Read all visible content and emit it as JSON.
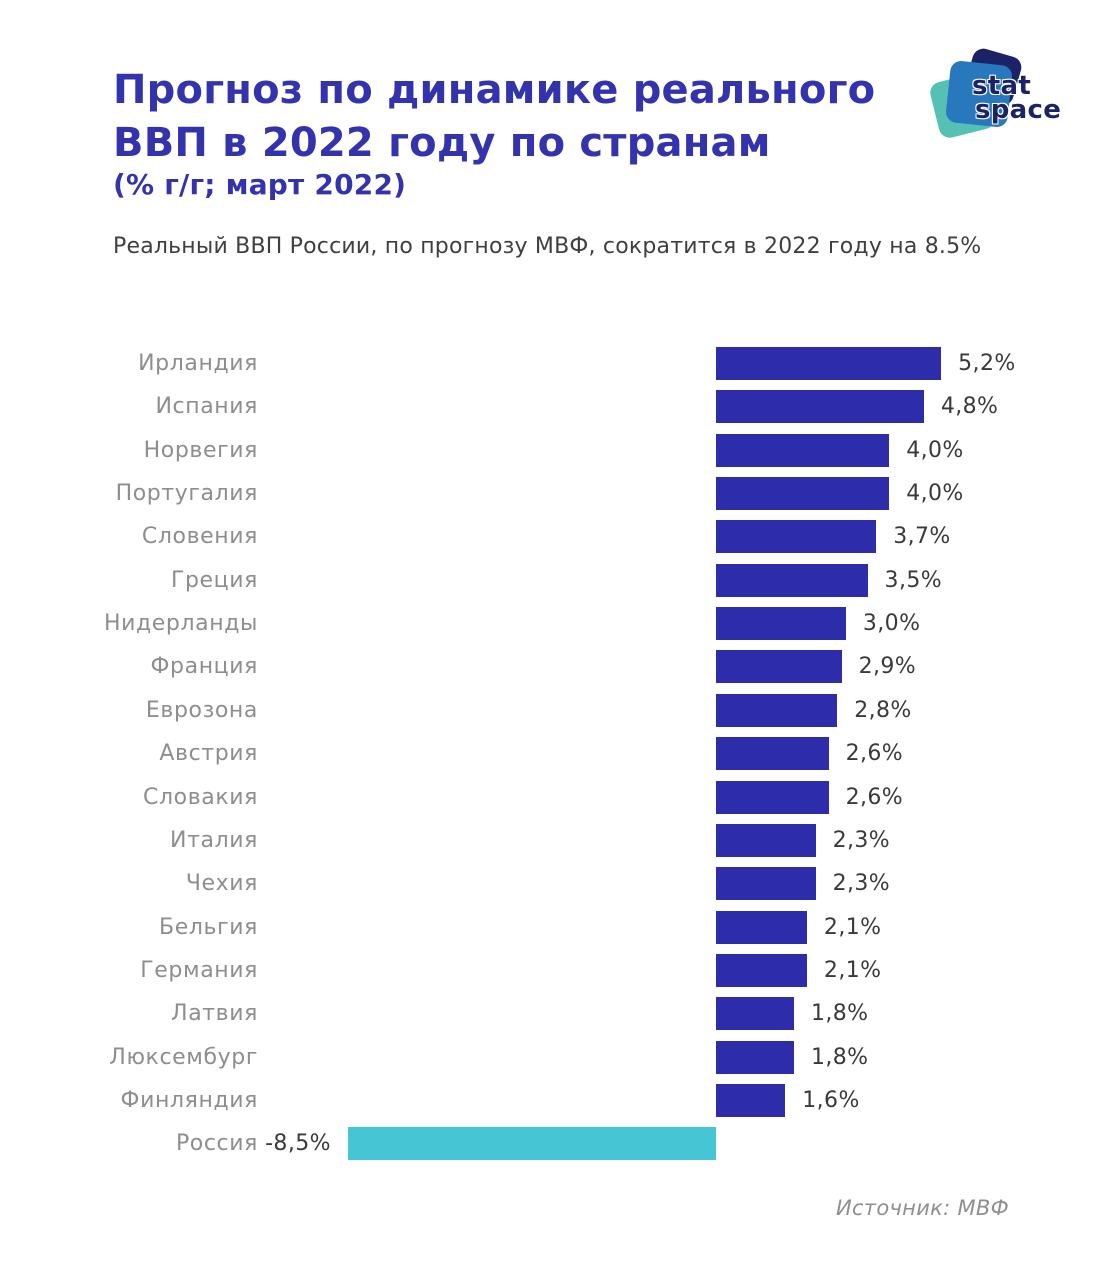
{
  "header": {
    "title_line1": "Прогноз по динамике реального",
    "title_line2": "ВВП в 2022 году по странам",
    "subtitle": "(% г/г; март 2022)",
    "description": "Реальный ВВП России, по прогнозу МВФ, сократится в 2022 году на 8.5%"
  },
  "logo": {
    "line1": "stat",
    "line2": "space"
  },
  "source": "Источник: МВФ",
  "colors": {
    "title": "#3433AE",
    "bar_positive": "#2D2CAB",
    "bar_negative": "#46C5D5",
    "logo_teal": "#57C0B4",
    "logo_blue": "#2878BE",
    "logo_navy": "#1C2266",
    "country_label": "#8E8E8E",
    "value_label": "#3A3A3A"
  },
  "chart_data": {
    "type": "bar",
    "orientation": "horizontal",
    "title": "Прогноз по динамике реального ВВП в 2022 году по странам",
    "subtitle": "(% г/г; март 2022)",
    "xlabel": "",
    "ylabel": "",
    "xlim": [
      -8.5,
      5.2
    ],
    "grid": false,
    "legend": false,
    "source": "МВФ",
    "categories": [
      "Ирландия",
      "Испания",
      "Норвегия",
      "Португалия",
      "Словения",
      "Греция",
      "Нидерланды",
      "Франция",
      "Еврозона",
      "Австрия",
      "Словакия",
      "Италия",
      "Чехия",
      "Бельгия",
      "Германия",
      "Латвия",
      "Люксембург",
      "Финляндия",
      "Россия"
    ],
    "values": [
      5.2,
      4.8,
      4.0,
      4.0,
      3.7,
      3.5,
      3.0,
      2.9,
      2.8,
      2.6,
      2.6,
      2.3,
      2.3,
      2.1,
      2.1,
      1.8,
      1.8,
      1.6,
      -8.5
    ],
    "value_labels": [
      "5,2%",
      "4,8%",
      "4,0%",
      "4,0%",
      "3,7%",
      "3,5%",
      "3,0%",
      "2,9%",
      "2,8%",
      "2,6%",
      "2,6%",
      "2,3%",
      "2,3%",
      "2,1%",
      "2,1%",
      "1,8%",
      "1,8%",
      "1,6%",
      "-8,5%"
    ]
  }
}
